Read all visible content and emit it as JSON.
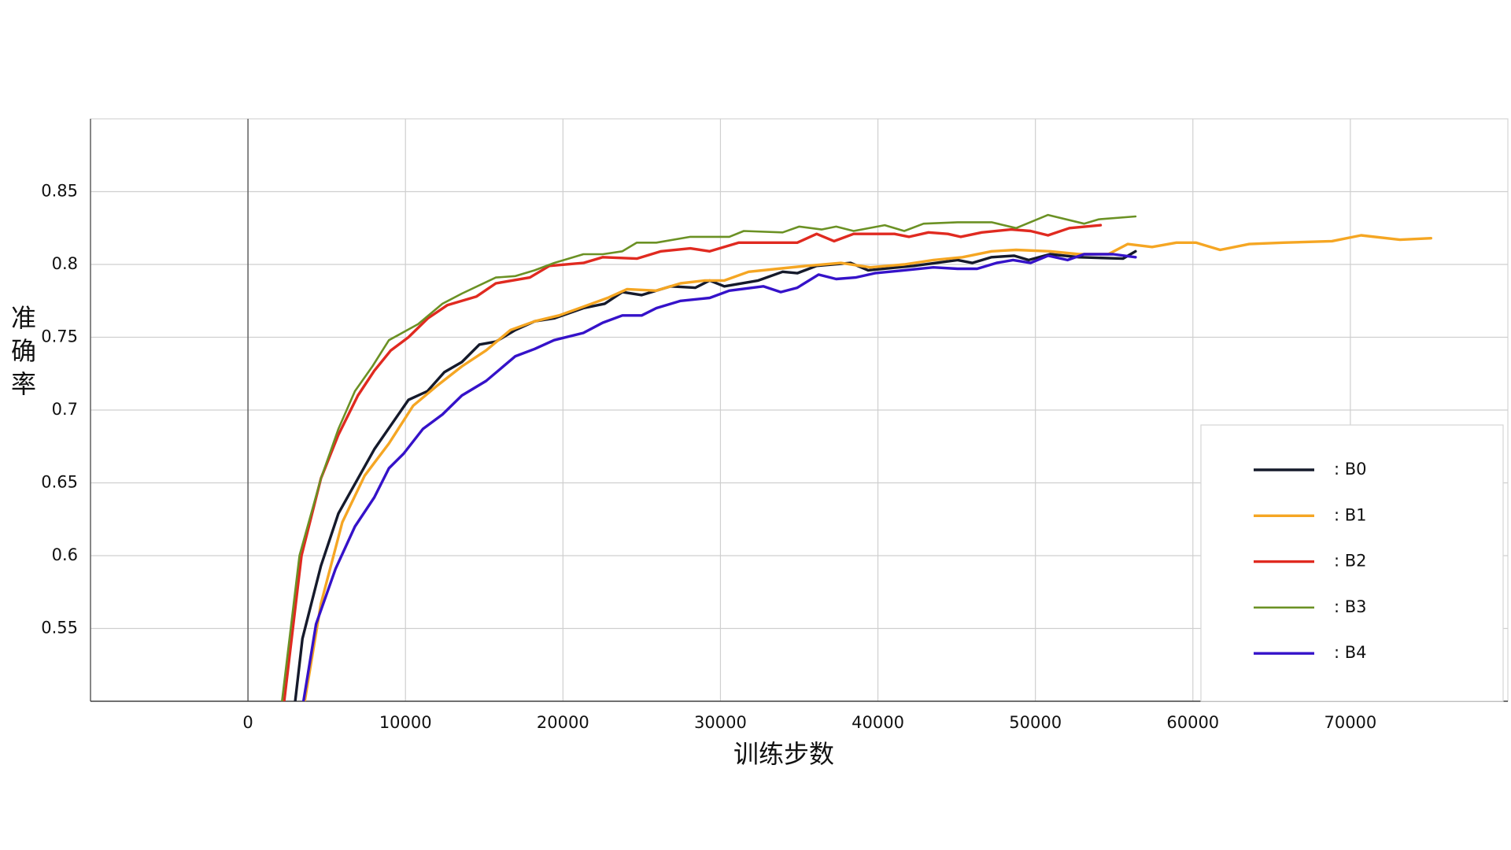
{
  "chart_data": {
    "type": "line",
    "x_label": "训练步数",
    "y_label": "准确率",
    "xlim": [
      -10000,
      80000
    ],
    "ylim": [
      0.5,
      0.9
    ],
    "xticks": [
      0,
      10000,
      20000,
      30000,
      40000,
      50000,
      60000,
      70000
    ],
    "yticks": [
      0.55,
      0.6,
      0.65,
      0.7,
      0.75,
      0.8,
      0.85
    ],
    "grid": true,
    "legend": "lower right",
    "series": [
      {
        "name": ": B0",
        "color": "#151a2b",
        "x": [
          3000,
          3460,
          4630,
          5740,
          8020,
          10190,
          11400,
          12470,
          13580,
          14690,
          15740,
          16980,
          18210,
          19440,
          21300,
          22650,
          23770,
          25000,
          26850,
          28400,
          29320,
          30250,
          32400,
          33950,
          34880,
          36110,
          38270,
          39380,
          42280,
          45060,
          45990,
          47220,
          48640,
          49570,
          50930,
          52780,
          55560,
          56360
        ],
        "values": [
          0.5,
          0.543,
          0.593,
          0.629,
          0.673,
          0.707,
          0.713,
          0.726,
          0.733,
          0.745,
          0.747,
          0.755,
          0.761,
          0.763,
          0.77,
          0.773,
          0.781,
          0.779,
          0.785,
          0.784,
          0.789,
          0.785,
          0.789,
          0.795,
          0.794,
          0.799,
          0.801,
          0.796,
          0.799,
          0.803,
          0.801,
          0.805,
          0.806,
          0.803,
          0.807,
          0.805,
          0.804,
          0.809
        ]
      },
      {
        "name": ": B1",
        "color": "#f5a623",
        "x": [
          3600,
          4630,
          5990,
          7410,
          8950,
          10490,
          12040,
          13580,
          15120,
          16670,
          18210,
          19750,
          21300,
          22840,
          24070,
          25930,
          27470,
          29010,
          30250,
          31790,
          33640,
          35490,
          37650,
          39510,
          41670,
          43520,
          45370,
          47220,
          48770,
          50930,
          52780,
          54630,
          55860,
          57410,
          58950,
          60190,
          61730,
          63580,
          65740,
          68830,
          70680,
          73150,
          75120
        ],
        "values": [
          0.5,
          0.567,
          0.623,
          0.655,
          0.677,
          0.703,
          0.717,
          0.73,
          0.741,
          0.755,
          0.761,
          0.765,
          0.771,
          0.777,
          0.783,
          0.782,
          0.787,
          0.789,
          0.789,
          0.795,
          0.797,
          0.799,
          0.801,
          0.798,
          0.8,
          0.803,
          0.805,
          0.809,
          0.81,
          0.809,
          0.807,
          0.807,
          0.814,
          0.812,
          0.815,
          0.815,
          0.81,
          0.814,
          0.815,
          0.816,
          0.82,
          0.817,
          0.818
        ]
      },
      {
        "name": ": B2",
        "color": "#e02a20",
        "x": [
          2300,
          3400,
          4630,
          5740,
          6980,
          8020,
          9070,
          10190,
          11420,
          12650,
          14510,
          15740,
          17900,
          19140,
          21300,
          22530,
          24690,
          26230,
          28090,
          29320,
          31170,
          33640,
          34880,
          36110,
          37220,
          38460,
          41050,
          41980,
          43210,
          44440,
          45250,
          46600,
          48460,
          49690,
          50800,
          52160,
          54140
        ],
        "values": [
          0.5,
          0.6,
          0.653,
          0.683,
          0.71,
          0.727,
          0.741,
          0.75,
          0.763,
          0.772,
          0.778,
          0.787,
          0.791,
          0.799,
          0.801,
          0.805,
          0.804,
          0.809,
          0.811,
          0.809,
          0.815,
          0.815,
          0.815,
          0.821,
          0.816,
          0.821,
          0.821,
          0.819,
          0.822,
          0.821,
          0.819,
          0.822,
          0.824,
          0.823,
          0.82,
          0.825,
          0.827
        ]
      },
      {
        "name": ": B3",
        "color": "#6b9124",
        "x": [
          2160,
          3270,
          4630,
          5740,
          6790,
          7900,
          8950,
          10800,
          12350,
          13580,
          15740,
          16980,
          18210,
          19440,
          21300,
          22530,
          23770,
          24690,
          25930,
          28090,
          30560,
          31480,
          33950,
          35000,
          36420,
          37350,
          38460,
          40430,
          41670,
          42900,
          45060,
          47220,
          48770,
          50800,
          53090,
          54010,
          56360
        ],
        "values": [
          0.5,
          0.6,
          0.653,
          0.687,
          0.713,
          0.73,
          0.748,
          0.759,
          0.773,
          0.78,
          0.791,
          0.792,
          0.796,
          0.801,
          0.807,
          0.807,
          0.809,
          0.815,
          0.815,
          0.819,
          0.819,
          0.823,
          0.822,
          0.826,
          0.824,
          0.826,
          0.823,
          0.827,
          0.823,
          0.828,
          0.829,
          0.829,
          0.825,
          0.834,
          0.828,
          0.831,
          0.833
        ]
      },
      {
        "name": ": B4",
        "color": "#3512c9",
        "x": [
          3520,
          4320,
          5560,
          6790,
          8020,
          8950,
          9880,
          11110,
          12350,
          13580,
          15120,
          16980,
          18210,
          19440,
          21300,
          22530,
          23770,
          25000,
          25930,
          27470,
          29320,
          30560,
          32720,
          33830,
          34880,
          36230,
          37350,
          38580,
          39810,
          41670,
          43520,
          45060,
          46300,
          47530,
          48580,
          49690,
          50800,
          52040,
          53090,
          54940,
          56360
        ],
        "values": [
          0.5,
          0.553,
          0.591,
          0.62,
          0.64,
          0.66,
          0.67,
          0.687,
          0.697,
          0.71,
          0.72,
          0.737,
          0.742,
          0.748,
          0.753,
          0.76,
          0.765,
          0.765,
          0.77,
          0.775,
          0.777,
          0.782,
          0.785,
          0.781,
          0.784,
          0.793,
          0.79,
          0.791,
          0.794,
          0.796,
          0.798,
          0.797,
          0.797,
          0.801,
          0.803,
          0.801,
          0.806,
          0.803,
          0.807,
          0.807,
          0.805
        ]
      }
    ]
  }
}
